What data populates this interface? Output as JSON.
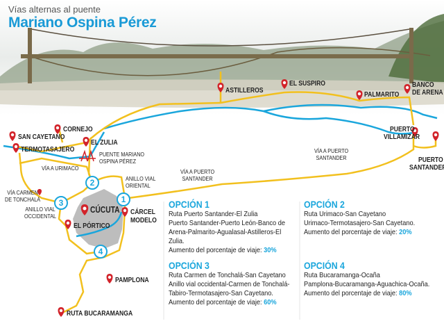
{
  "header": {
    "subtitle": "Vías alternas al puente",
    "title": "Mariano Ospina Pérez"
  },
  "colors": {
    "accent": "#1aa6dc",
    "road": "#f2c01e",
    "river": "#1aa6dc",
    "pin": "#d2232a",
    "city": "#bdbdbd"
  },
  "places": {
    "astilleros": "ASTILLEROS",
    "el_suspiro": "EL SUSPIRO",
    "palmarito": "PALMARITO",
    "banco_de_arena_1": "BANCO",
    "banco_de_arena_2": "DE ARENA",
    "puerto_villamizar_1": "PUERTO",
    "puerto_villamizar_2": "VILLAMIZAR",
    "puerto_santander_1": "PUERTO",
    "puerto_santander_2": "SANTANDER",
    "san_cayetano": "SAN CAYETANO",
    "cornejo": "CORNEJO",
    "termotasajero": "TERMOTASAJERO",
    "el_zulia": "EL ZULIA",
    "cucuta": "CÚCUTA",
    "carcel_1": "CÁRCEL",
    "carcel_2": "MODELO",
    "el_portico": "EL PÓRTICO",
    "pamplona": "PAMPLONA",
    "ruta_bucaramanga": "RUTA BUCARAMANGA"
  },
  "annotations": {
    "puente_1": "PUENTE MARIANO",
    "puente_2": "OSPINA PÉREZ",
    "via_urimaco": "VÍA A URIMACO",
    "anillo_oriental_1": "ANILLO VIAL",
    "anillo_oriental_2": "ORIENTAL",
    "via_ps_a_1": "VÍA A PUERTO",
    "via_ps_a_2": "SANTANDER",
    "via_ps_b_1": "VÍA A PUERTO",
    "via_ps_b_2": "SANTANDER",
    "via_carmen_1": "VÍA CARMEN",
    "via_carmen_2": "DE TONCHALÁ",
    "anillo_occ_1": "ANILLO VIAL",
    "anillo_occ_2": "OCCIDENTAL"
  },
  "route_markers": [
    "1",
    "2",
    "3",
    "4"
  ],
  "options": [
    {
      "title": "OPCIÓN 1",
      "lines": [
        "Ruta Puerto Santander-El Zulia",
        "Puerto Santander-Puerto León-Banco de Arena-Palmarito-Agualasal-Astilleros-El Zulia."
      ],
      "increase_label": "Aumento del porcentaje de viaje:",
      "increase": "30%"
    },
    {
      "title": "OPCIÓN 2",
      "lines": [
        "Ruta Urimaco-San Cayetano",
        "Urimaco-Termotasajero-San Cayetano."
      ],
      "increase_label": "Aumento del porcentaje de viaje:",
      "increase": "20%"
    },
    {
      "title": "OPCIÓN 3",
      "lines": [
        "Ruta Carmen de Tonchalá-San Cayetano",
        "Anillo vial occidental-Carmen de Tonchalá-Tabiro-Termotasajero-San Cayetano."
      ],
      "increase_label": "Aumento del porcentaje de viaje:",
      "increase": "60%"
    },
    {
      "title": "OPCIÓN 4",
      "lines": [
        "Ruta Bucaramanga-Ocaña",
        "Pamplona-Bucaramanga-Aguachica-Ocaña."
      ],
      "increase_label": "Aumento del porcentaje de viaje:",
      "increase": "80%"
    }
  ]
}
